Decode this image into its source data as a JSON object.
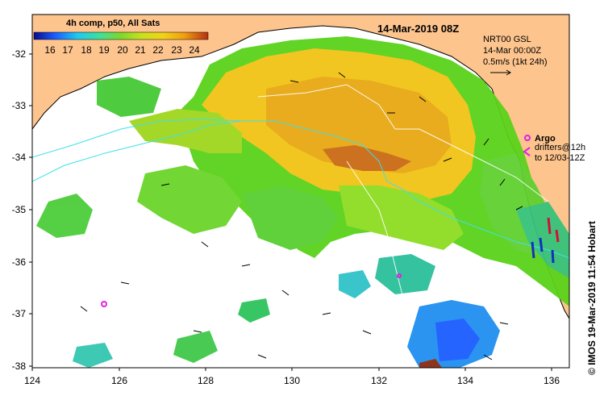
{
  "header": {
    "product": "4h comp, p50, All Sats",
    "date": "14-Mar-2019 08Z"
  },
  "colorbar": {
    "ticks": [
      "16",
      "17",
      "18",
      "19",
      "20",
      "21",
      "22",
      "23",
      "24"
    ]
  },
  "currents": {
    "source": "NRT00 GSL",
    "time": "14-Mar 00:00Z",
    "scale_label": "0.5m/s (1kt 24h)"
  },
  "legend": {
    "argo": "Argo",
    "drifters_line1": "drifters@12h",
    "drifters_line2": "to 12/03-12Z"
  },
  "axes": {
    "lat_labels": [
      "-32",
      "-33",
      "-34",
      "-35",
      "-36",
      "-37",
      "-38"
    ],
    "lon_labels": [
      "124",
      "126",
      "128",
      "130",
      "132",
      "134",
      "136"
    ]
  },
  "credit": "© IMOS 19-Mar-2019 11:54 Hobart",
  "colors": {
    "land": "#fdc48e",
    "contour": "#3fe0e8"
  }
}
